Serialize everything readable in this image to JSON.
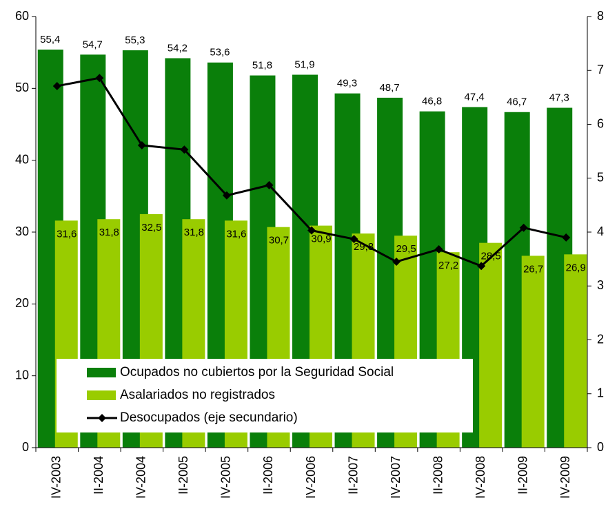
{
  "chart_data": {
    "type": "bar_line",
    "categories": [
      "IV-2003",
      "II-2004",
      "IV-2004",
      "II-2005",
      "IV-2005",
      "II-2006",
      "IV-2006",
      "II-2007",
      "IV-2007",
      "II-2008",
      "IV-2008",
      "II-2009",
      "IV-2009"
    ],
    "series": [
      {
        "name": "Ocupados no cubiertos por la Seguridad Social",
        "type": "bar",
        "color": "#0a7f0a",
        "values": [
          55.4,
          54.7,
          55.3,
          54.2,
          53.6,
          51.8,
          51.9,
          49.3,
          48.7,
          46.8,
          47.4,
          46.7,
          47.3
        ],
        "value_labels": [
          "55,4",
          "54,7",
          "55,3",
          "54,2",
          "53,6",
          "51,8",
          "51,9",
          "49,3",
          "48,7",
          "46,8",
          "47,4",
          "46,7",
          "47,3"
        ]
      },
      {
        "name": "Asalariados no registrados",
        "type": "bar",
        "color": "#99cc00",
        "values": [
          31.6,
          31.8,
          32.5,
          31.8,
          31.6,
          30.7,
          30.9,
          29.8,
          29.5,
          27.2,
          28.5,
          26.7,
          26.9
        ],
        "value_labels": [
          "31,6",
          "31,8",
          "32,5",
          "31,8",
          "31,6",
          "30,7",
          "30,9",
          "29,8",
          "29,5",
          "27,2",
          "28,5",
          "26,7",
          "26,9"
        ]
      },
      {
        "name": "Desocupados (eje secundario)",
        "type": "line",
        "axis": "y2",
        "color": "#000000",
        "values": [
          6.71,
          6.86,
          5.61,
          5.53,
          4.68,
          4.87,
          4.03,
          3.87,
          3.45,
          3.68,
          3.37,
          4.08,
          3.9
        ]
      }
    ],
    "ylim": [
      0,
      60
    ],
    "yticks": [
      0,
      10,
      20,
      30,
      40,
      50,
      60
    ],
    "y2lim": [
      0,
      8
    ],
    "y2ticks": [
      0,
      1,
      2,
      3,
      4,
      5,
      6,
      7,
      8
    ],
    "legend": "bottom-left"
  }
}
